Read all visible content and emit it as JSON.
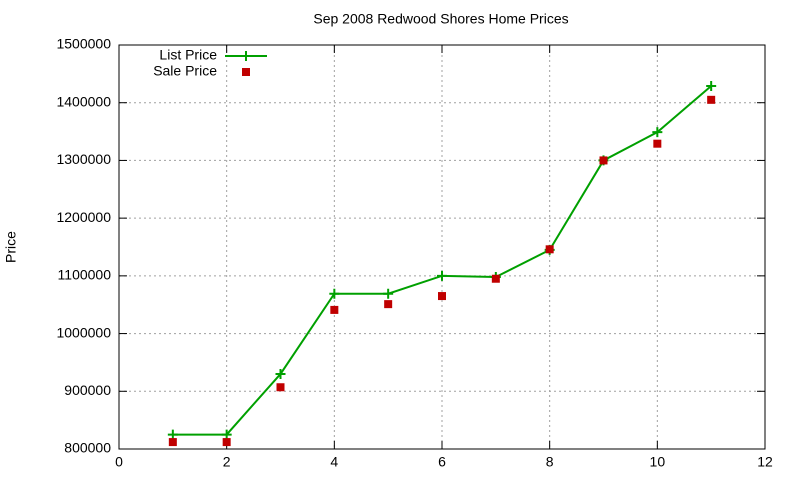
{
  "chart_data": {
    "type": "line",
    "title": "Sep 2008 Redwood Shores Home Prices",
    "y_label": "Price",
    "x": [
      1,
      2,
      3,
      4,
      5,
      6,
      7,
      8,
      9,
      10,
      11
    ],
    "series": [
      {
        "name": "List Price",
        "color": "#00a000",
        "marker": "plus",
        "line": true,
        "values": [
          825000,
          825000,
          930000,
          1069000,
          1069000,
          1100000,
          1098000,
          1145000,
          1300000,
          1349000,
          1429000
        ]
      },
      {
        "name": "Sale Price",
        "color": "#c00000",
        "marker": "square",
        "line": false,
        "values": [
          812000,
          812000,
          907000,
          1041000,
          1051000,
          1065000,
          1095000,
          1146000,
          1300000,
          1329000,
          1405000
        ]
      }
    ],
    "xlim": [
      0,
      12
    ],
    "xticks": [
      0,
      2,
      4,
      6,
      8,
      10,
      12
    ],
    "ylim": [
      800000,
      1500000
    ],
    "yticks": [
      800000,
      900000,
      1000000,
      1100000,
      1200000,
      1300000,
      1400000,
      1500000
    ],
    "grid": true,
    "legend": "top-left"
  }
}
